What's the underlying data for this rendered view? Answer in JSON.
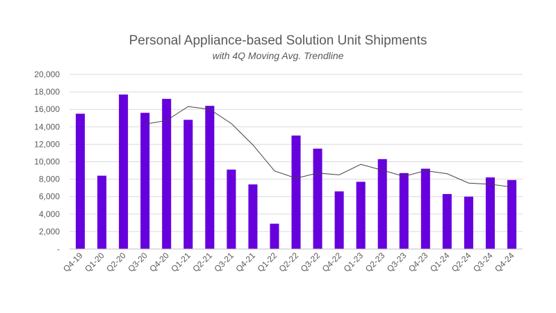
{
  "chart_data": {
    "type": "bar",
    "title": "Personal Appliance-based Solution Unit Shipments",
    "subtitle": "with 4Q Moving Avg. Trendline",
    "categories": [
      "Q4-19",
      "Q1-20",
      "Q2-20",
      "Q3-20",
      "Q4-20",
      "Q1-21",
      "Q2-21",
      "Q3-21",
      "Q4-21",
      "Q1-22",
      "Q2-22",
      "Q3-22",
      "Q4-22",
      "Q1-23",
      "Q2-23",
      "Q3-23",
      "Q4-23",
      "Q1-24",
      "Q2-24",
      "Q3-24",
      "Q4-24"
    ],
    "series": [
      {
        "type": "bar",
        "values": [
          15500,
          8400,
          17700,
          15600,
          17200,
          14800,
          16400,
          9100,
          7400,
          2900,
          13000,
          11500,
          6600,
          7700,
          10300,
          8700,
          9200,
          6300,
          6000,
          8200,
          7900
        ],
        "color": "#6600DD"
      },
      {
        "type": "line",
        "trendline": "4Q moving average",
        "values": [
          null,
          null,
          null,
          14300,
          14725,
          16325,
          16000,
          14375,
          11925,
          8950,
          8100,
          8700,
          8500,
          9700,
          9025,
          8325,
          8975,
          8625,
          7550,
          7425,
          7100
        ],
        "color": "#404040"
      }
    ],
    "ylim": [
      0,
      20000
    ],
    "yticks": [
      0,
      2000,
      4000,
      6000,
      8000,
      10000,
      12000,
      14000,
      16000,
      18000,
      20000
    ],
    "ytick_labels": [
      "-",
      "2,000",
      "4,000",
      "6,000",
      "8,000",
      "10,000",
      "12,000",
      "14,000",
      "16,000",
      "18,000",
      "20,000"
    ],
    "grid": true,
    "legend": "none"
  }
}
